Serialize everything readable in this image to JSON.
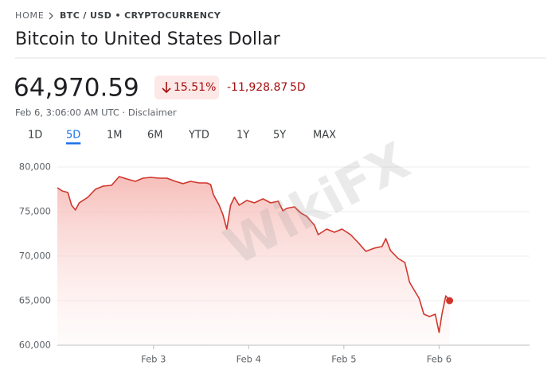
{
  "breadcrumb": [
    "HOME",
    "BTC / USD • CRYPTOCURRENCY"
  ],
  "title": "Bitcoin to United States Dollar",
  "price": "64,970.59",
  "change_percent": "15.51%",
  "change_amount": "-11,928.87",
  "change_period": "5D",
  "timestamp": "Feb 6, 3:06:00 AM UTC · Disclaimer",
  "tabs": [
    "1D",
    "5D",
    "1M",
    "6M",
    "YTD",
    "1Y",
    "5Y",
    "MAX"
  ],
  "selected_tab": 1,
  "watermark": "WikiFX",
  "chart_data": {
    "type": "line",
    "area": true,
    "grid": true,
    "xlim": [
      1.99,
      6.95
    ],
    "ylim": [
      60000,
      80000
    ],
    "xticks": [
      {
        "value": 3,
        "label": "Feb 3"
      },
      {
        "value": 4,
        "label": "Feb 4"
      },
      {
        "value": 5,
        "label": "Feb 5"
      },
      {
        "value": 6,
        "label": "Feb 6"
      }
    ],
    "yticks": [
      {
        "value": 60000,
        "label": "60,000"
      },
      {
        "value": 65000,
        "label": "65,000"
      },
      {
        "value": 70000,
        "label": "70,000"
      },
      {
        "value": 75000,
        "label": "75,000"
      },
      {
        "value": 80000,
        "label": "80,000"
      }
    ],
    "x": [
      1.99,
      2.04,
      2.1,
      2.14,
      2.18,
      2.22,
      2.31,
      2.39,
      2.47,
      2.56,
      2.64,
      2.72,
      2.81,
      2.89,
      2.97,
      3.06,
      3.14,
      3.23,
      3.31,
      3.39,
      3.48,
      3.56,
      3.6,
      3.63,
      3.69,
      3.73,
      3.77,
      3.81,
      3.85,
      3.9,
      3.98,
      4.06,
      4.15,
      4.23,
      4.31,
      4.36,
      4.4,
      4.48,
      4.55,
      4.61,
      4.69,
      4.73,
      4.82,
      4.9,
      4.98,
      5.07,
      5.15,
      5.23,
      5.32,
      5.4,
      5.44,
      5.49,
      5.57,
      5.64,
      5.69,
      5.74,
      5.79,
      5.84,
      5.9,
      5.96,
      6.0,
      6.03,
      6.07,
      6.11
    ],
    "series": [
      {
        "color": "#d0352b",
        "values": [
          77680,
          77320,
          77140,
          75710,
          75180,
          75980,
          76610,
          77500,
          77860,
          77950,
          78930,
          78660,
          78390,
          78750,
          78840,
          78750,
          78750,
          78390,
          78130,
          78390,
          78210,
          78210,
          78040,
          76880,
          75710,
          74640,
          73040,
          75710,
          76610,
          75710,
          76250,
          75980,
          76430,
          75980,
          76160,
          75090,
          75360,
          75540,
          74820,
          74460,
          73480,
          72410,
          73040,
          72680,
          73040,
          72410,
          71520,
          70540,
          70890,
          71070,
          71960,
          70620,
          69730,
          69290,
          67050,
          66160,
          65270,
          63480,
          63210,
          63480,
          61430,
          63480,
          65540,
          65000
        ]
      }
    ]
  }
}
